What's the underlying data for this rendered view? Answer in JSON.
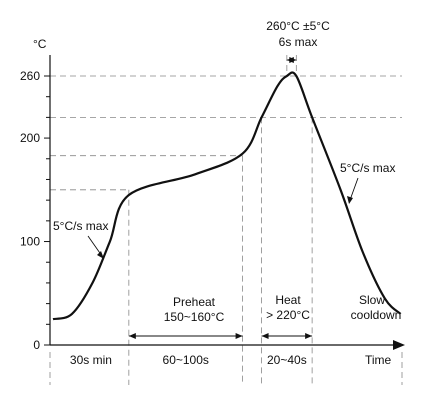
{
  "chart_data": {
    "type": "line",
    "title": "",
    "ylabel": "°C",
    "xlabel": "Time",
    "ylim": [
      0,
      285
    ],
    "y_ticks": [
      0,
      100,
      200,
      260
    ],
    "y_minor_ticks": [
      20,
      40,
      60,
      80,
      120,
      140,
      160,
      180,
      220,
      240
    ],
    "reference_temps": [
      150,
      183,
      220,
      260
    ],
    "series": [
      {
        "points": [
          {
            "x": 0,
            "y": 25
          },
          {
            "x": 12,
            "y": 30
          },
          {
            "x": 25,
            "y": 60
          },
          {
            "x": 36,
            "y": 100
          },
          {
            "x": 48,
            "y": 145
          },
          {
            "x": 90,
            "y": 165
          },
          {
            "x": 120,
            "y": 185
          },
          {
            "x": 132,
            "y": 220
          },
          {
            "x": 142,
            "y": 250
          },
          {
            "x": 148,
            "y": 260
          },
          {
            "x": 154,
            "y": 260
          },
          {
            "x": 164,
            "y": 220
          },
          {
            "x": 182,
            "y": 150
          },
          {
            "x": 196,
            "y": 90
          },
          {
            "x": 210,
            "y": 45
          },
          {
            "x": 220,
            "y": 30
          }
        ]
      }
    ],
    "x_phase_boundaries": [
      48,
      120,
      132,
      164
    ],
    "phases": [
      {
        "label": "30s min",
        "from": 0,
        "to": 48
      },
      {
        "label": "60~100s",
        "from": 48,
        "to": 120
      },
      {
        "label": "20~40s",
        "from": 132,
        "to": 164
      }
    ],
    "annotations": {
      "peak_line1": "260°C ±5°C",
      "peak_line2": "6s max",
      "ramp_up": "5°C/s max",
      "ramp_down": "5°C/s max",
      "preheat_line1": "Preheat",
      "preheat_line2": "150~160°C",
      "heat_line1": "Heat",
      "heat_line2": "> 220°C",
      "slow_line1": "Slow",
      "slow_line2": "cooldown"
    }
  }
}
